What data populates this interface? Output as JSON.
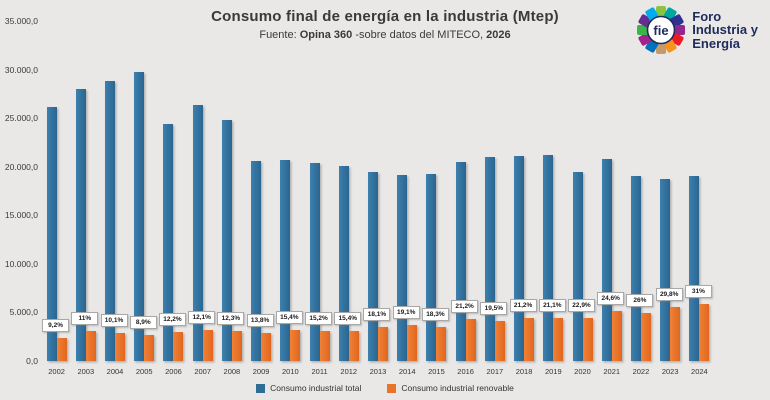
{
  "header": {
    "title": "Consumo final de energía en la industria (Mtep)",
    "subtitle_parts": [
      {
        "text": "Fuente: ",
        "bold": false
      },
      {
        "text": "Opina 360 ",
        "bold": true
      },
      {
        "text": "-sobre datos del MITECO, ",
        "bold": false
      },
      {
        "text": "2026",
        "bold": true
      }
    ]
  },
  "logo": {
    "monogram": "fie",
    "name_lines": [
      "Foro",
      "Industria y",
      "Energía"
    ],
    "navy": "#1f2b5b",
    "petal_colors": [
      "#8bc53f",
      "#00a79d",
      "#2e3192",
      "#92278f",
      "#ed1c24",
      "#f7941e",
      "#c49a6c",
      "#0072bc",
      "#a3238e",
      "#39b54a",
      "#662d91",
      "#00aeef"
    ]
  },
  "chart_data": {
    "type": "bar",
    "title": "Consumo final de energía en la industria (Mtep)",
    "categories": [
      "2002",
      "2003",
      "2004",
      "2005",
      "2006",
      "2007",
      "2008",
      "2009",
      "2010",
      "2011",
      "2012",
      "2013",
      "2014",
      "2015",
      "2016",
      "2017",
      "2018",
      "2019",
      "2020",
      "2021",
      "2022",
      "2023",
      "2024"
    ],
    "series": [
      {
        "name": "Consumo industrial total",
        "color": "#2e6d96",
        "values": [
          26200,
          28000,
          28800,
          29800,
          24400,
          26400,
          24800,
          20600,
          20700,
          20400,
          20100,
          19500,
          19200,
          19300,
          20500,
          21000,
          21100,
          21200,
          19500,
          20800,
          19000,
          18700,
          19000
        ]
      },
      {
        "name": "Consumo industrial renovable",
        "color": "#e8732a",
        "values": [
          2410,
          3080,
          2910,
          2650,
          2980,
          3190,
          3050,
          2840,
          3190,
          3100,
          3100,
          3530,
          3670,
          3530,
          4350,
          4100,
          4470,
          4470,
          4470,
          5120,
          4940,
          5570,
          5890
        ]
      }
    ],
    "bar_labels": [
      "9,2%",
      "11%",
      "10,1%",
      "8,9%",
      "12,2%",
      "12,1%",
      "12,3%",
      "13,8%",
      "15,4%",
      "15,2%",
      "15,4%",
      "18,1%",
      "19,1%",
      "18,3%",
      "21,2%",
      "19,5%",
      "21,2%",
      "21,1%",
      "22,9%",
      "24,6%",
      "26%",
      "29,8%",
      "31%"
    ],
    "y_ticks": [
      "35.000,0",
      "30.000,0",
      "25.000,0",
      "20.000,0",
      "15.000,0",
      "10.000,0",
      "5.000,0",
      "0,0"
    ],
    "ylim": [
      0,
      35000
    ],
    "grid": false,
    "legend_position": "bottom"
  }
}
